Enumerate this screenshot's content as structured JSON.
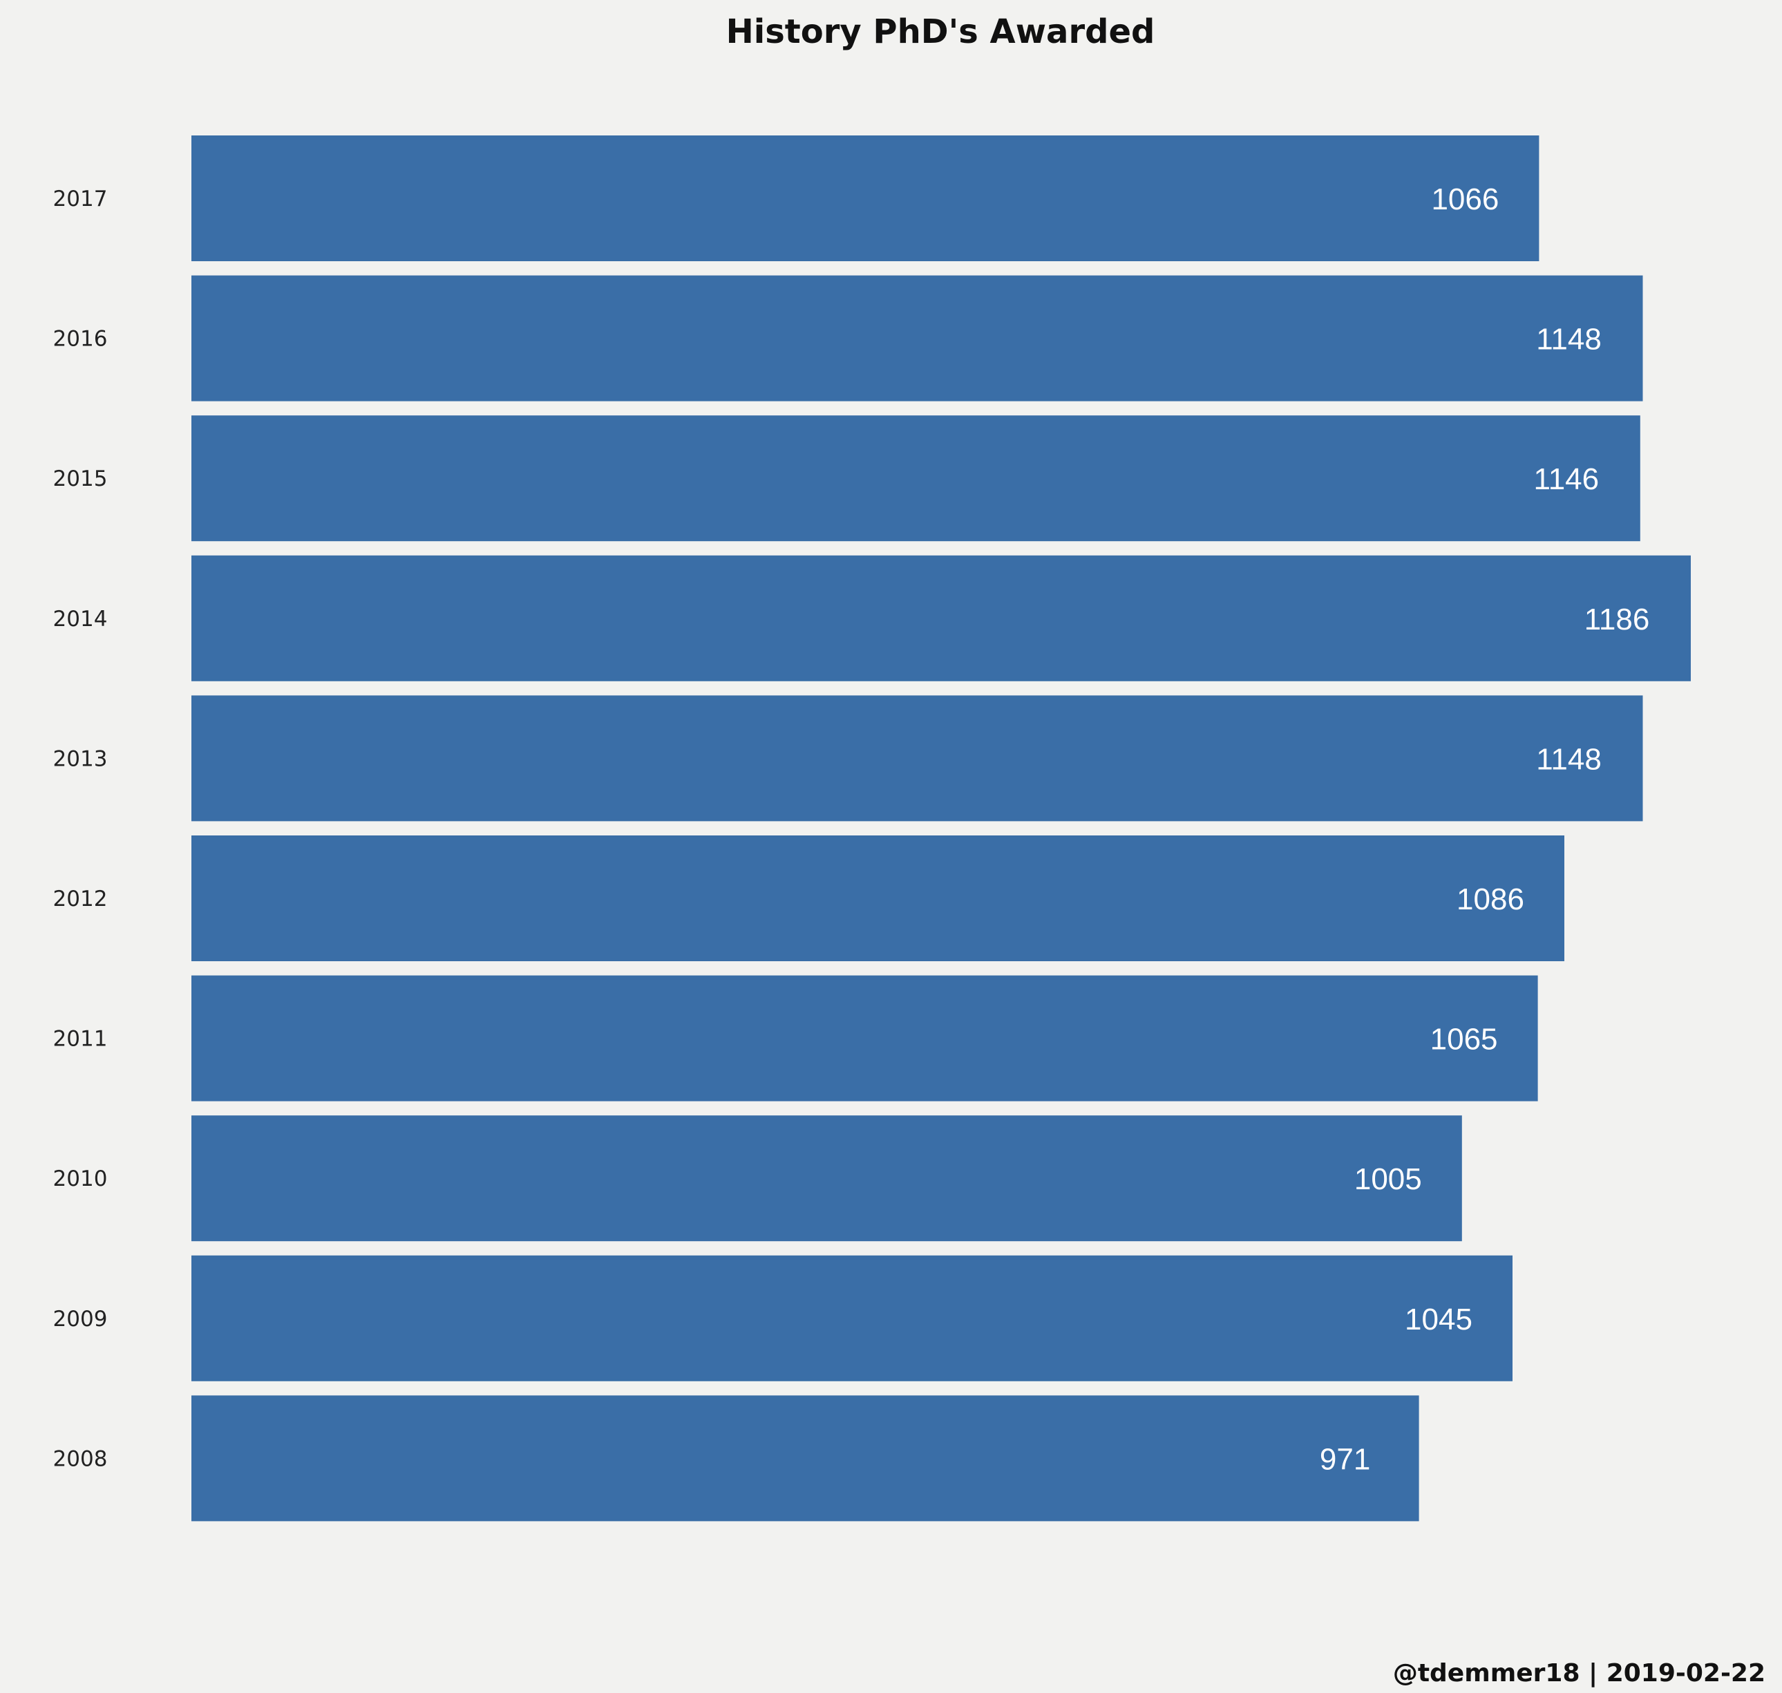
{
  "chart_data": {
    "type": "bar",
    "orientation": "horizontal",
    "title": "History PhD's Awarded",
    "categories": [
      "2017",
      "2016",
      "2015",
      "2014",
      "2013",
      "2012",
      "2011",
      "2010",
      "2009",
      "2008"
    ],
    "values": [
      1066,
      1148,
      1146,
      1186,
      1148,
      1086,
      1065,
      1005,
      1045,
      971
    ],
    "xlabel": "",
    "ylabel": "",
    "xlim": [
      0,
      1186
    ],
    "grid": false,
    "data_labels": true,
    "bar_color": "#3a6ea7",
    "background_color": "#f2f2f0"
  },
  "caption": "@tdemmer18 | 2019-02-22"
}
